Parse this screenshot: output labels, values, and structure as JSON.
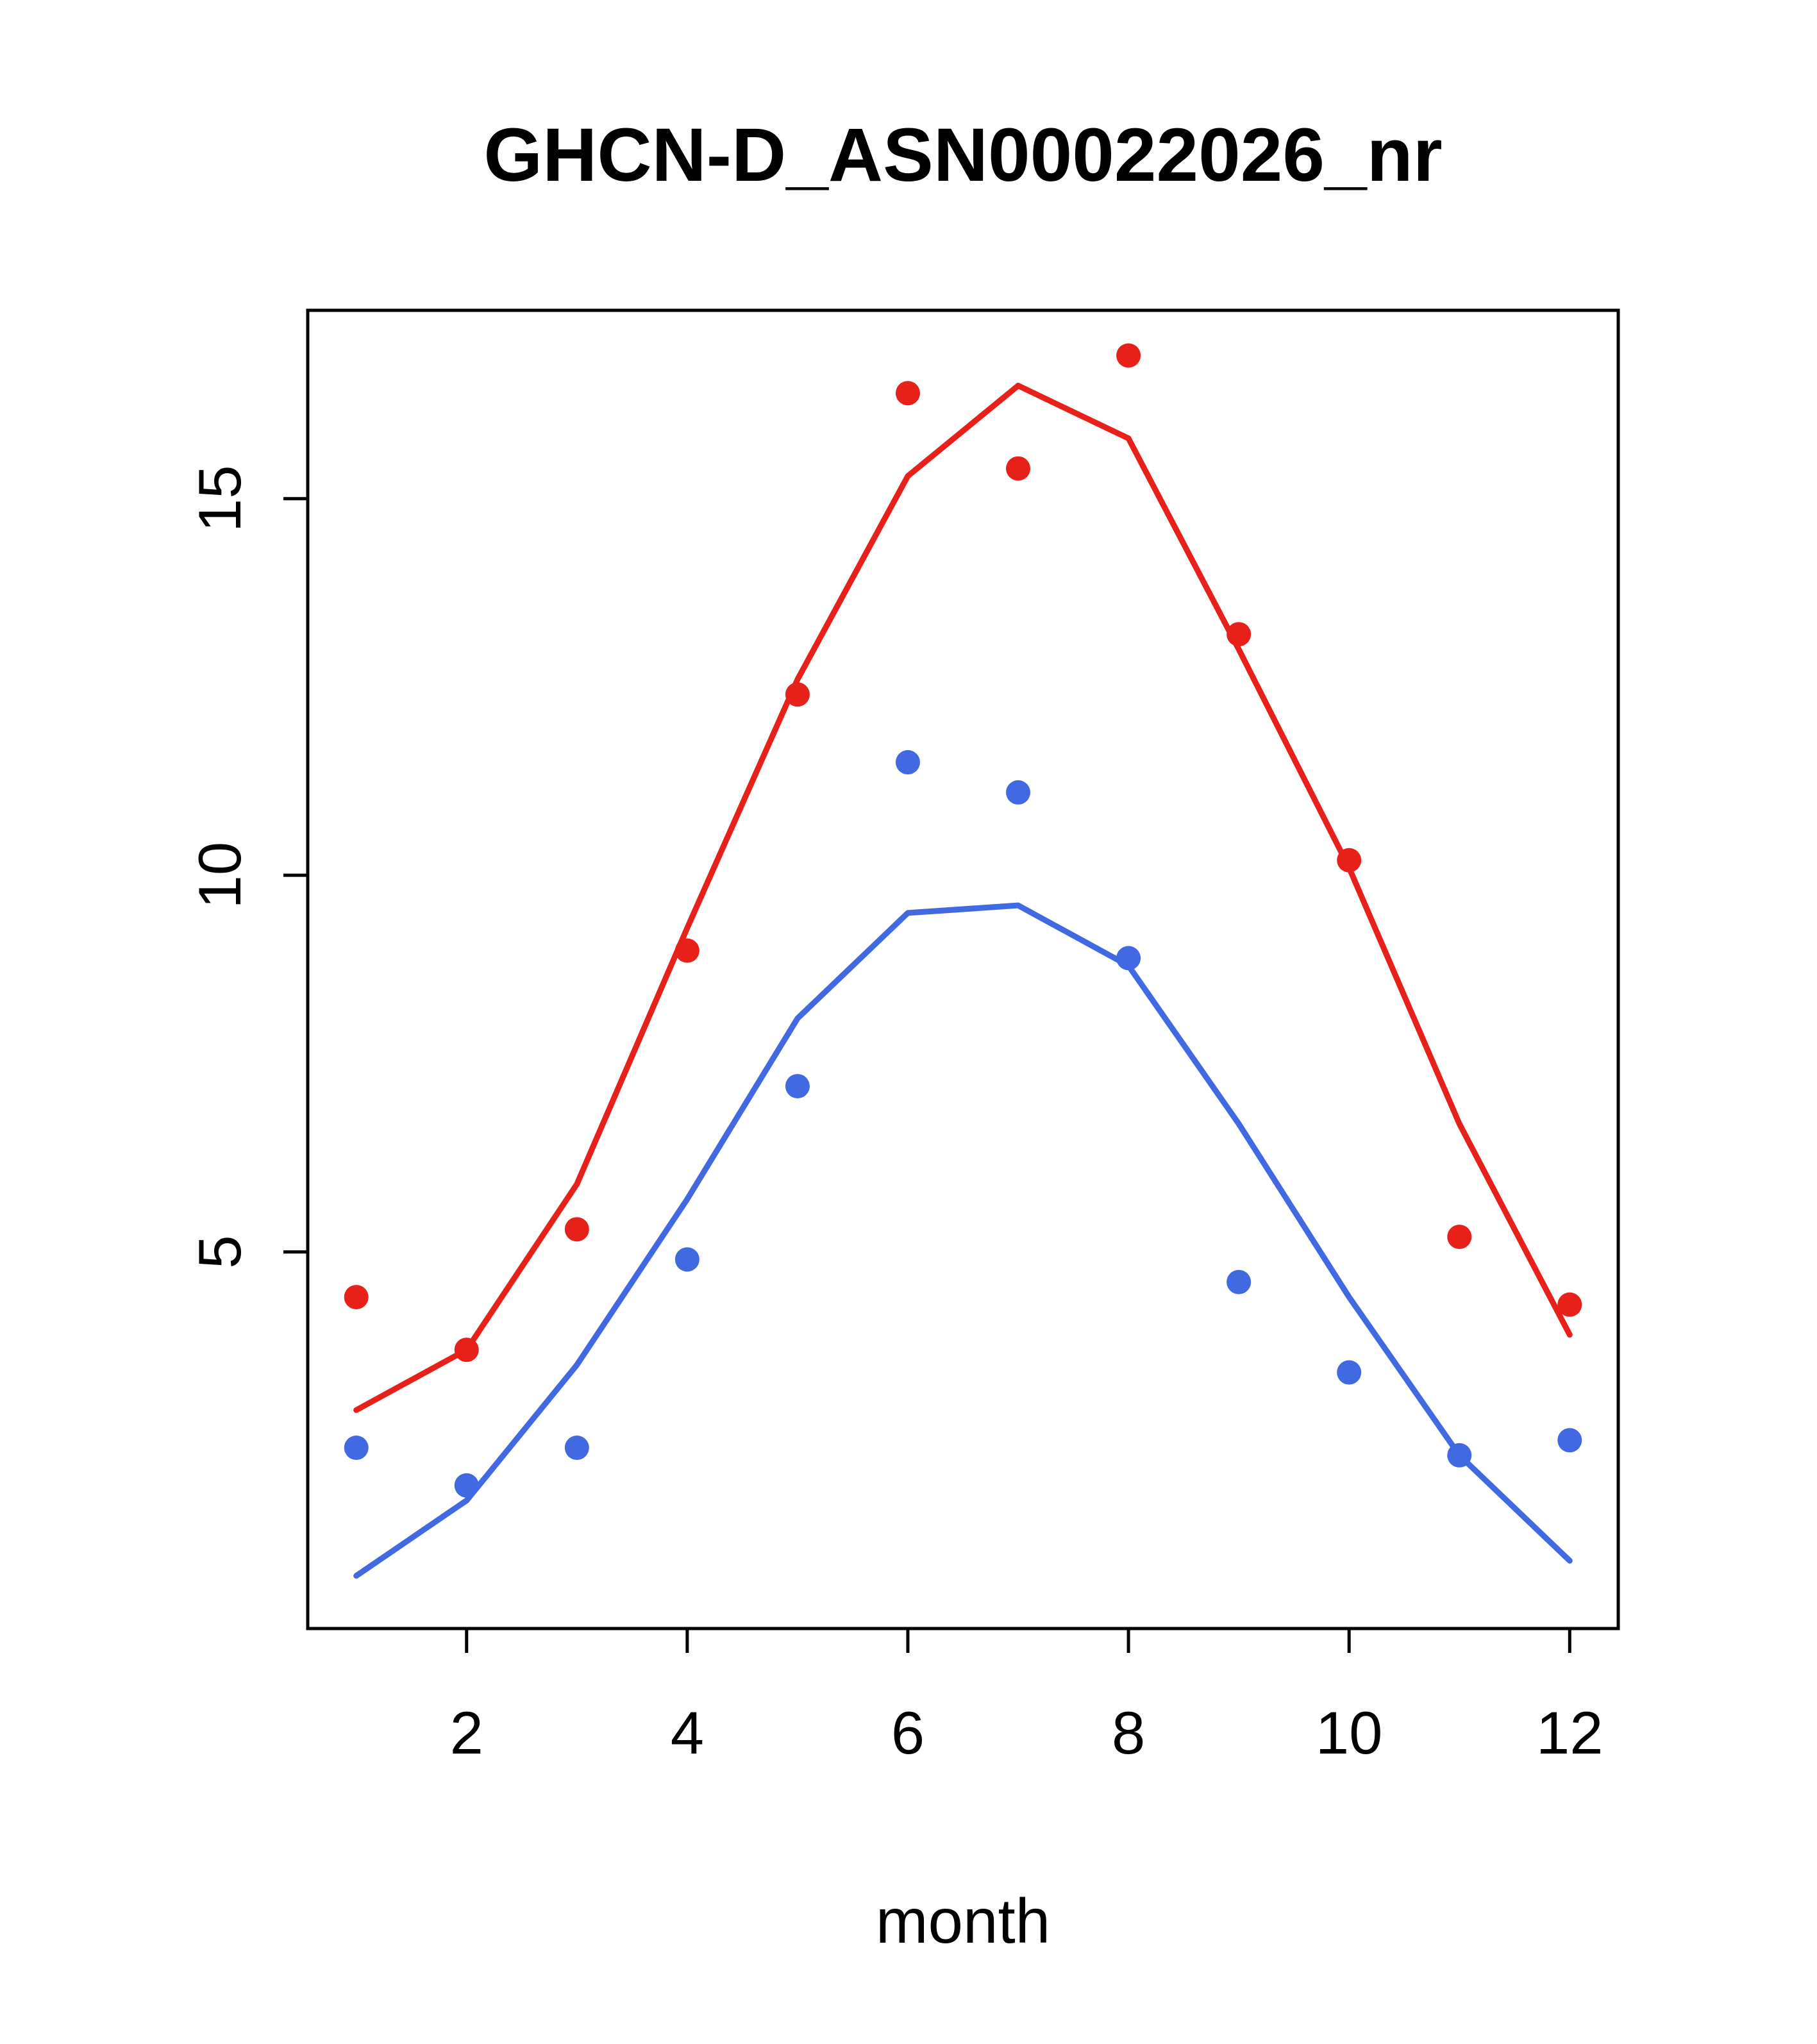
{
  "chart_data": {
    "type": "line",
    "title": "GHCN-D_ASN00022026_nr",
    "xlabel": "month",
    "ylabel": "",
    "x": [
      1,
      2,
      3,
      4,
      5,
      6,
      7,
      8,
      9,
      10,
      11,
      12
    ],
    "xlim": [
      0.56,
      12.44
    ],
    "ylim": [
      0,
      17.5
    ],
    "x_ticks": [
      2,
      4,
      6,
      8,
      10,
      12
    ],
    "y_ticks": [
      5,
      10,
      15
    ],
    "grid": false,
    "legend": null,
    "colors": {
      "red": "#e8201a",
      "blue": "#4169e1",
      "axis": "#000000"
    },
    "series": [
      {
        "name": "red-line",
        "style": "line",
        "color": "#e8201a",
        "values": [
          2.9,
          3.7,
          5.9,
          9.3,
          12.6,
          15.3,
          16.5,
          15.8,
          13.0,
          10.1,
          6.7,
          3.9
        ]
      },
      {
        "name": "blue-line",
        "style": "line",
        "color": "#4169e1",
        "values": [
          0.7,
          1.7,
          3.5,
          5.7,
          8.1,
          9.5,
          9.6,
          8.8,
          6.7,
          4.4,
          2.3,
          0.9
        ]
      },
      {
        "name": "red-points",
        "style": "points",
        "color": "#e8201a",
        "values": [
          4.4,
          3.7,
          5.3,
          9.0,
          12.4,
          16.4,
          15.4,
          16.9,
          13.2,
          10.2,
          5.2,
          4.3
        ]
      },
      {
        "name": "blue-points",
        "style": "points",
        "color": "#4169e1",
        "values": [
          2.4,
          1.9,
          2.4,
          4.9,
          7.2,
          11.5,
          11.1,
          8.9,
          4.6,
          3.4,
          2.3,
          2.5
        ]
      }
    ]
  }
}
